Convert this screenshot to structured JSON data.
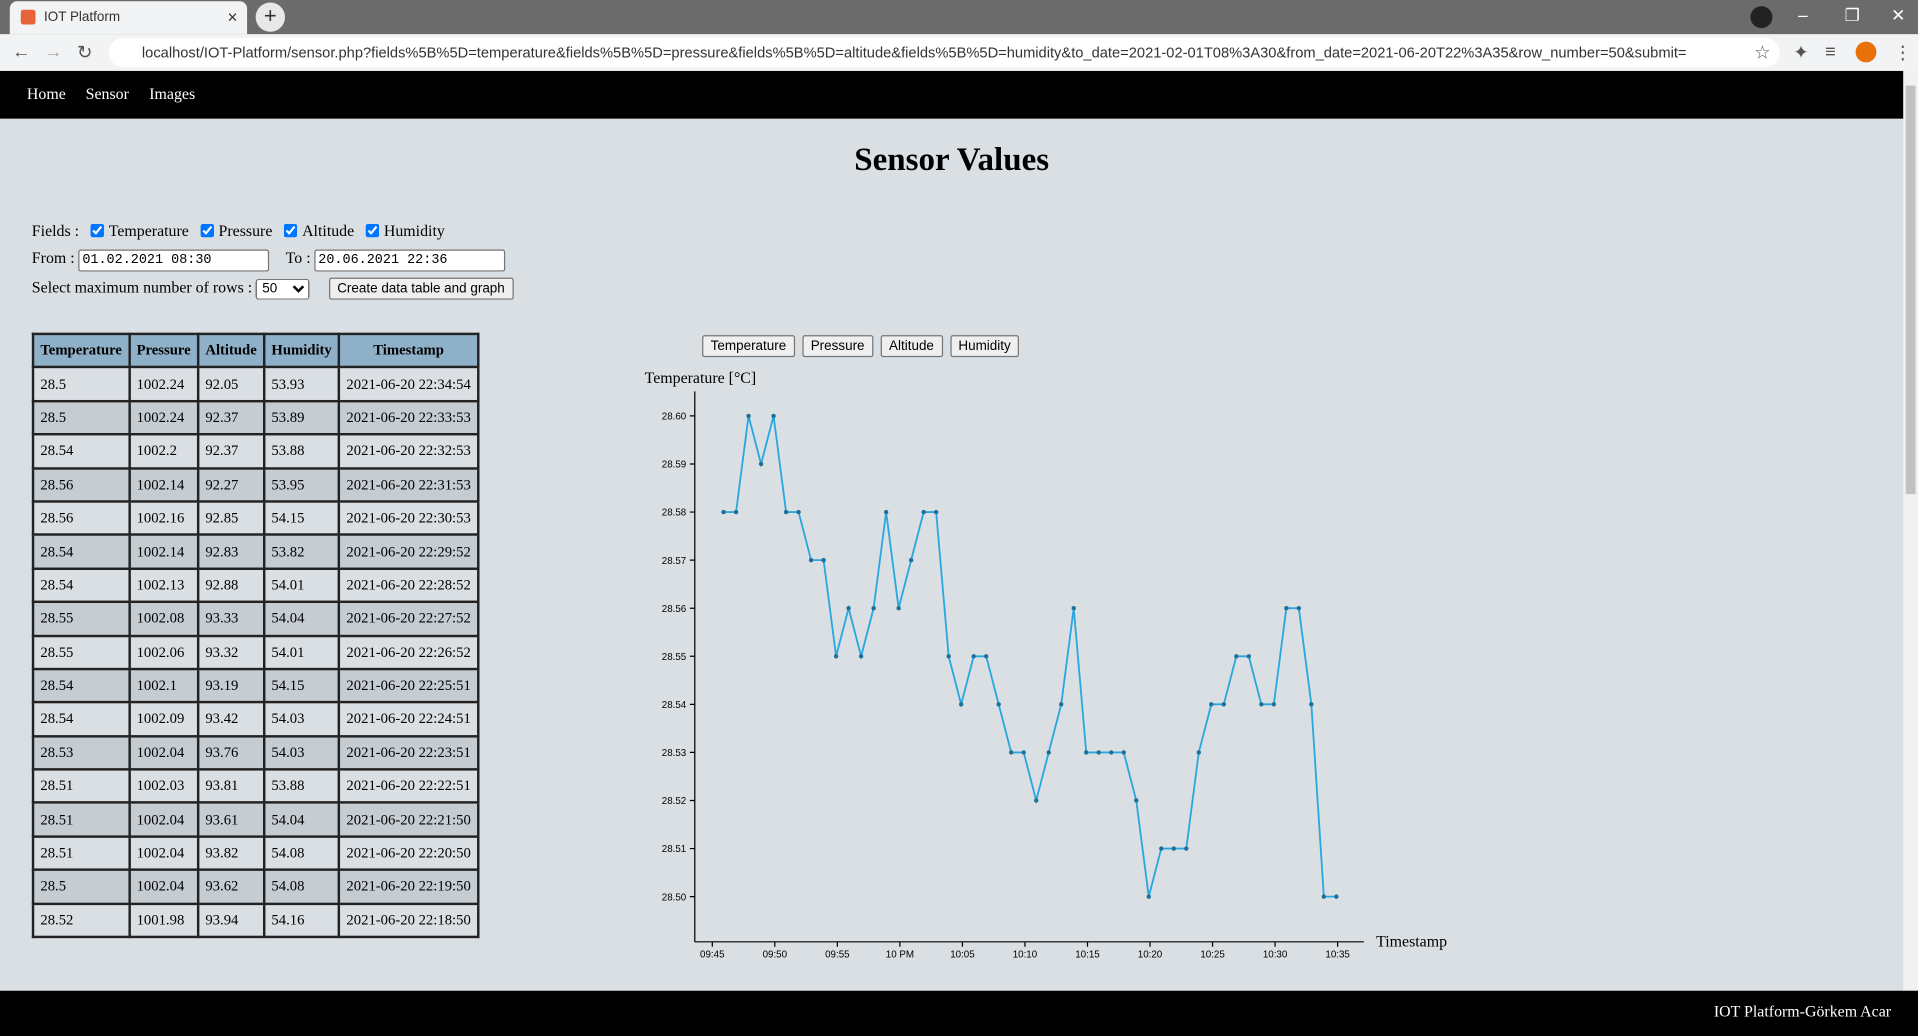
{
  "browser": {
    "tab_title": "IOT Platform",
    "url": "localhost/IOT-Platform/sensor.php?fields%5B%5D=temperature&fields%5B%5D=pressure&fields%5B%5D=altitude&fields%5B%5D=humidity&to_date=2021-02-01T08%3A30&from_date=2021-06-20T22%3A35&row_number=50&submit="
  },
  "nav": [
    "Home",
    "Sensor",
    "Images"
  ],
  "page": {
    "title": "Sensor Values"
  },
  "form": {
    "fields_label": "Fields :",
    "fields": [
      "Temperature",
      "Pressure",
      "Altitude",
      "Humidity"
    ],
    "from_label": "From :",
    "from_value": "01.02.2021 08:30",
    "to_label": "To :",
    "to_value": "20.06.2021 22:36",
    "rows_label": "Select maximum number of rows :",
    "rows_value": "50",
    "submit": "Create data table and graph"
  },
  "table": {
    "headers": [
      "Temperature",
      "Pressure",
      "Altitude",
      "Humidity",
      "Timestamp"
    ],
    "rows": [
      [
        "28.5",
        "1002.24",
        "92.05",
        "53.93",
        "2021-06-20 22:34:54"
      ],
      [
        "28.5",
        "1002.24",
        "92.37",
        "53.89",
        "2021-06-20 22:33:53"
      ],
      [
        "28.54",
        "1002.2",
        "92.37",
        "53.88",
        "2021-06-20 22:32:53"
      ],
      [
        "28.56",
        "1002.14",
        "92.27",
        "53.95",
        "2021-06-20 22:31:53"
      ],
      [
        "28.56",
        "1002.16",
        "92.85",
        "54.15",
        "2021-06-20 22:30:53"
      ],
      [
        "28.54",
        "1002.14",
        "92.83",
        "53.82",
        "2021-06-20 22:29:52"
      ],
      [
        "28.54",
        "1002.13",
        "92.88",
        "54.01",
        "2021-06-20 22:28:52"
      ],
      [
        "28.55",
        "1002.08",
        "93.33",
        "54.04",
        "2021-06-20 22:27:52"
      ],
      [
        "28.55",
        "1002.06",
        "93.32",
        "54.01",
        "2021-06-20 22:26:52"
      ],
      [
        "28.54",
        "1002.1",
        "93.19",
        "54.15",
        "2021-06-20 22:25:51"
      ],
      [
        "28.54",
        "1002.09",
        "93.42",
        "54.03",
        "2021-06-20 22:24:51"
      ],
      [
        "28.53",
        "1002.04",
        "93.76",
        "54.03",
        "2021-06-20 22:23:51"
      ],
      [
        "28.51",
        "1002.03",
        "93.81",
        "53.88",
        "2021-06-20 22:22:51"
      ],
      [
        "28.51",
        "1002.04",
        "93.61",
        "54.04",
        "2021-06-20 22:21:50"
      ],
      [
        "28.51",
        "1002.04",
        "93.82",
        "54.08",
        "2021-06-20 22:20:50"
      ],
      [
        "28.5",
        "1002.04",
        "93.62",
        "54.08",
        "2021-06-20 22:19:50"
      ],
      [
        "28.52",
        "1001.98",
        "93.94",
        "54.16",
        "2021-06-20 22:18:50"
      ]
    ]
  },
  "chart_buttons": [
    "Temperature",
    "Pressure",
    "Altitude",
    "Humidity"
  ],
  "chart_data": {
    "type": "line",
    "y_label": "Temperature [°C]",
    "x_label": "Timestamp",
    "color": "#29a8e0",
    "x": [
      1305.9,
      1306.9,
      1307.9,
      1308.9,
      1309.9,
      1310.9,
      1311.9,
      1312.9,
      1313.9,
      1314.9,
      1315.9,
      1316.9,
      1317.9,
      1318.9,
      1319.9,
      1320.9,
      1321.9,
      1322.9,
      1323.9,
      1324.9,
      1325.9,
      1326.9,
      1327.9,
      1328.9,
      1329.9,
      1330.9,
      1331.9,
      1332.9,
      1333.9,
      1334.9,
      1335.9,
      1336.9,
      1337.9,
      1338.9,
      1339.9,
      1340.9,
      1341.9,
      1342.9,
      1343.9,
      1344.9,
      1345.9,
      1346.9,
      1347.9,
      1348.9,
      1349.9,
      1350.9,
      1351.9,
      1352.9,
      1353.9,
      1354.9
    ],
    "values": [
      28.58,
      28.58,
      28.6,
      28.59,
      28.6,
      28.58,
      28.58,
      28.57,
      28.57,
      28.55,
      28.56,
      28.55,
      28.56,
      28.58,
      28.56,
      28.57,
      28.58,
      28.58,
      28.55,
      28.54,
      28.55,
      28.55,
      28.54,
      28.53,
      28.53,
      28.52,
      28.53,
      28.54,
      28.56,
      28.53,
      28.53,
      28.53,
      28.53,
      28.52,
      28.5,
      28.51,
      28.51,
      28.51,
      28.53,
      28.54,
      28.54,
      28.55,
      28.55,
      28.54,
      28.54,
      28.56,
      28.56,
      28.54,
      28.5,
      28.5
    ],
    "xlim": [
      1303.6,
      1357.1
    ],
    "xticks": [
      {
        "value": 1305,
        "label": "09:45"
      },
      {
        "value": 1310,
        "label": "09:50"
      },
      {
        "value": 1315,
        "label": "09:55"
      },
      {
        "value": 1320,
        "label": "10 PM"
      },
      {
        "value": 1325,
        "label": "10:05"
      },
      {
        "value": 1330,
        "label": "10:10"
      },
      {
        "value": 1335,
        "label": "10:15"
      },
      {
        "value": 1340,
        "label": "10:20"
      },
      {
        "value": 1345,
        "label": "10:25"
      },
      {
        "value": 1350,
        "label": "10:30"
      },
      {
        "value": 1355,
        "label": "10:35"
      }
    ],
    "ylim": [
      28.4906,
      28.6051
    ],
    "yticks": [
      {
        "value": 28.5,
        "label": "28.50"
      },
      28.51,
      28.52,
      28.53,
      28.54,
      28.55,
      28.56,
      28.57,
      28.58,
      28.59,
      {
        "value": 28.6,
        "label": "28.60"
      }
    ],
    "grid": false
  },
  "footer": "IOT Platform-Görkem Acar"
}
